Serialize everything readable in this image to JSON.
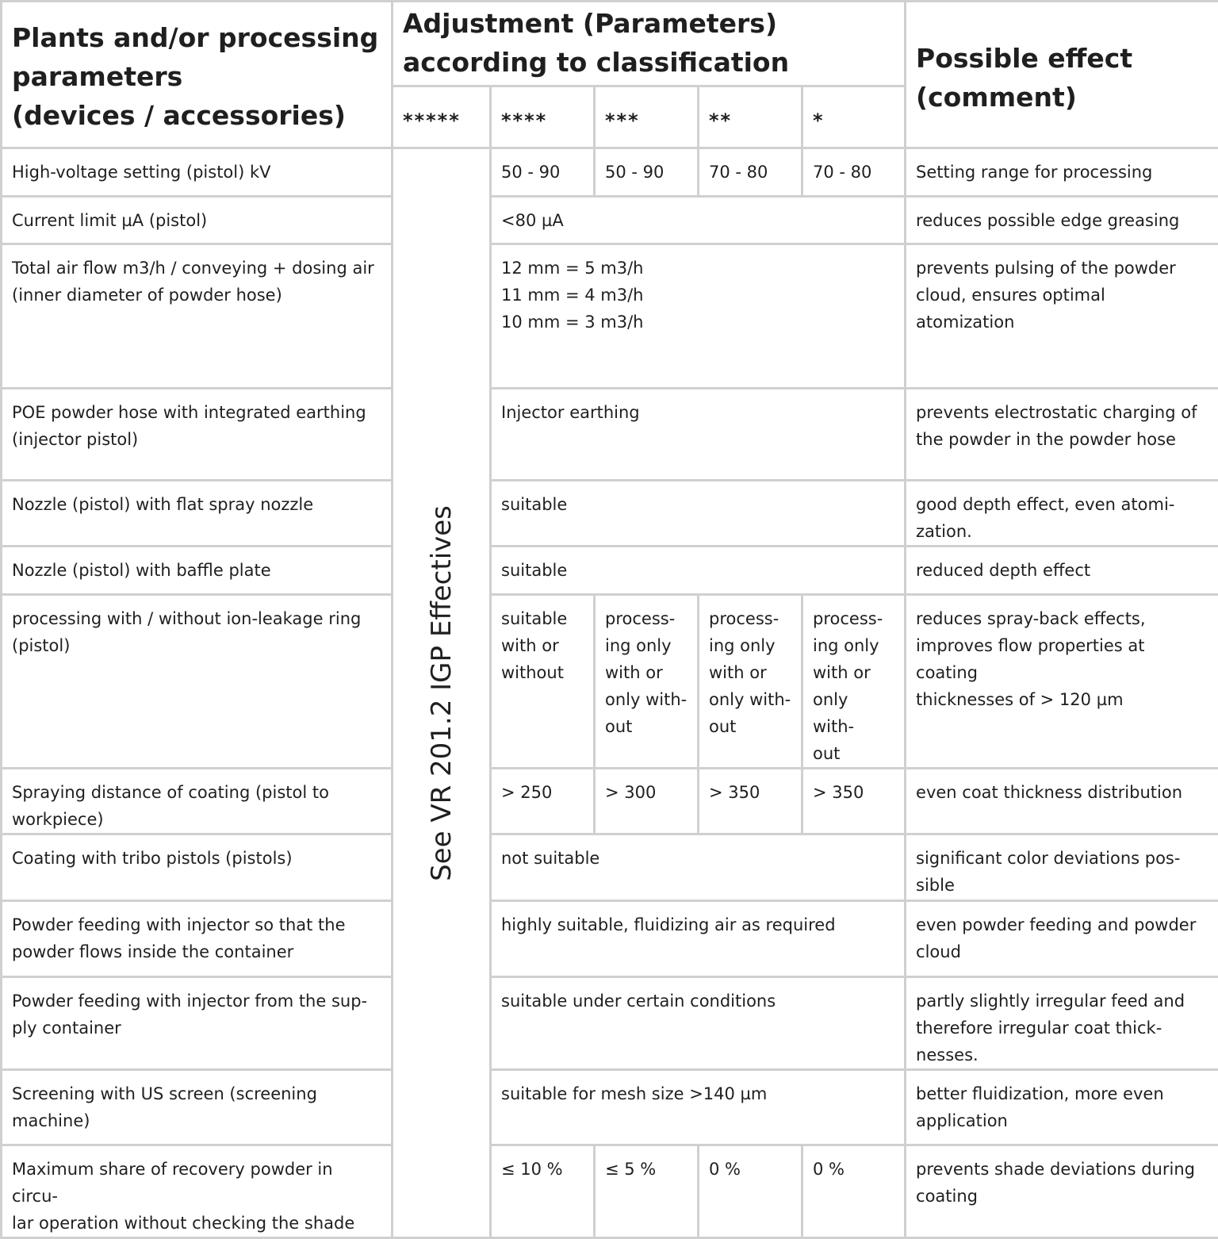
{
  "header": {
    "col1": "Plants and/or processing parameters\n(devices / accessories)",
    "adjustment": "Adjustment (Parameters)\naccording to classification",
    "effect": "Possible effect\n(comment)",
    "stars": [
      "*****",
      "****",
      "***",
      "**",
      "*"
    ]
  },
  "vertical_note": "See VR 201.2 IGP Effectives",
  "rows": [
    {
      "param": "High-voltage setting (pistol) kV",
      "values": [
        "50 - 90",
        "50 - 90",
        "70 - 80",
        "70 - 80"
      ],
      "effect": "Setting range for processing"
    },
    {
      "param": "Current limit µA (pistol)",
      "value": "<80 µA",
      "effect": "reduces possible edge greasing"
    },
    {
      "param": "Total air flow m3/h / conveying + dosing air\n(inner diameter of powder hose)",
      "value": "12 mm = 5 m3/h\n11 mm = 4 m3/h\n10 mm = 3 m3/h",
      "effect": "prevents pulsing of the powder\ncloud, ensures optimal atomization"
    },
    {
      "param": "POE powder hose with integrated earthing\n(injector pistol)",
      "value": "Injector earthing",
      "effect": "prevents electrostatic charging of\nthe powder in the powder hose"
    },
    {
      "param": "Nozzle (pistol) with flat spray nozzle",
      "value": "suitable",
      "effect": "good depth effect, even atomi-\nzation."
    },
    {
      "param": "Nozzle (pistol) with baffle plate",
      "value": "suitable",
      "effect": "reduced depth effect"
    },
    {
      "param": "processing with / without ion-leakage ring\n(pistol)",
      "values": [
        "suitable\nwith or\nwithout",
        "process-\ning only\nwith or\nonly with-\nout",
        "process-\ning only\nwith or\nonly with-\nout",
        "process-\ning only\nwith or\nonly with-\nout"
      ],
      "effect": "reduces spray-back effects,\nimproves flow properties at coating\nthicknesses of > 120 µm"
    },
    {
      "param": "Spraying distance of coating (pistol to\nworkpiece)",
      "values": [
        "> 250",
        "> 300",
        "> 350",
        "> 350"
      ],
      "effect": "even coat thickness distribution"
    },
    {
      "param": "Coating with tribo pistols (pistols)",
      "value": "not suitable",
      "effect": "significant color deviations pos-\nsible"
    },
    {
      "param": "Powder feeding with injector so that the\npowder flows inside the container",
      "value": "highly suitable, fluidizing air as required",
      "effect": "even powder feeding and powder\ncloud"
    },
    {
      "param": "Powder feeding with injector from the sup-\nply container",
      "value": "suitable under certain conditions",
      "effect": "partly slightly irregular feed and\ntherefore irregular coat thick-\nnesses."
    },
    {
      "param": "Screening with US screen (screening\nmachine)",
      "value": "suitable for mesh size >140 µm",
      "effect": "better fluidization, more even\napplication"
    },
    {
      "param": "Maximum share of recovery powder in circu-\nlar operation without checking the shade",
      "values": [
        "≤ 10 %",
        "≤ 5 %",
        "0 %",
        "0 %"
      ],
      "effect": "prevents shade deviations during\ncoating"
    }
  ]
}
